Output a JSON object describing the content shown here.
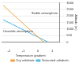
{
  "chart_data": {
    "type": "line",
    "x_label": "Temperature gradient",
    "y_label": "Altitude (m)",
    "annotations": [
      "Stable atmosphere",
      "Unstable atmosphere"
    ],
    "series": [
      {
        "name": "Dry adiabatic",
        "color": "#f4a340",
        "x": [
          -2.4,
          0.4
        ],
        "values": [
          2800,
          0
        ]
      },
      {
        "name": "Saturated adiabatic",
        "color": "#4fb7e6",
        "x": [
          -2.4,
          0.7
        ],
        "values": [
          1700,
          0
        ]
      }
    ],
    "xlim": [
      -2.5,
      1.5
    ],
    "xticks": [
      -2,
      -1,
      0,
      1
    ],
    "ylim": [
      0,
      3000
    ],
    "yticks": [
      0,
      500,
      1000,
      1500,
      2000,
      2500,
      3000
    ],
    "grid": true,
    "legend": "bottom"
  }
}
